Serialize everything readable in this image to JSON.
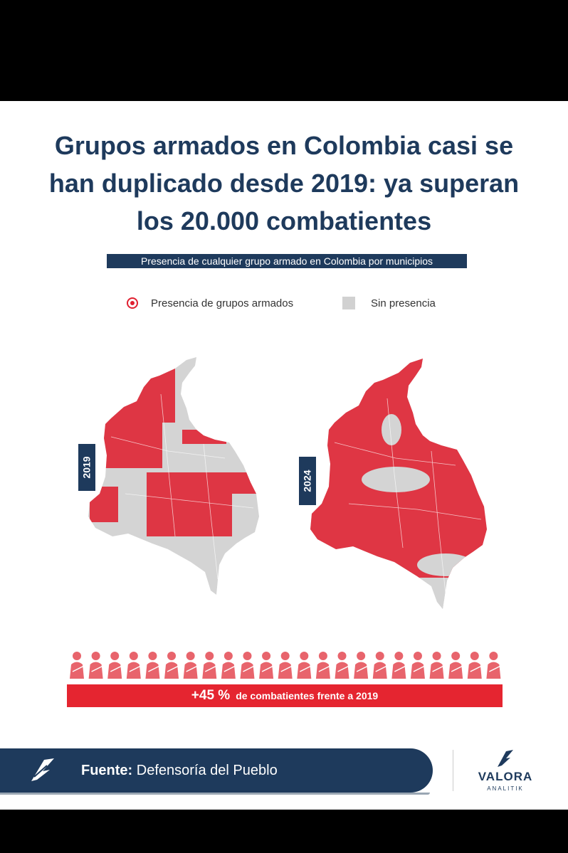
{
  "header": {
    "title_lines": [
      "Grupos armados en Colombia casi se",
      "han duplicado desde 2019: ya superan",
      "los 20.000 combatientes"
    ],
    "subtitle": "Presencia de cualquier grupo armado en Colombia por municipios"
  },
  "legend": {
    "presence_label": "Presencia de grupos armados",
    "absence_label": "Sin presencia",
    "presence_color": "#e02030",
    "absence_color": "#d1d1d1"
  },
  "maps": [
    {
      "year": "2019"
    },
    {
      "year": "2024"
    }
  ],
  "stat": {
    "value": "+45 %",
    "label": "de combatientes frente a 2019",
    "color": "#e52530"
  },
  "source": {
    "prefix": "Fuente:",
    "name": "Defensoría del Pueblo"
  },
  "logo": {
    "name": "VALORA",
    "sub": "ANALITIK"
  },
  "colors": {
    "navy": "#1e3a5c",
    "red": "#e52530"
  }
}
